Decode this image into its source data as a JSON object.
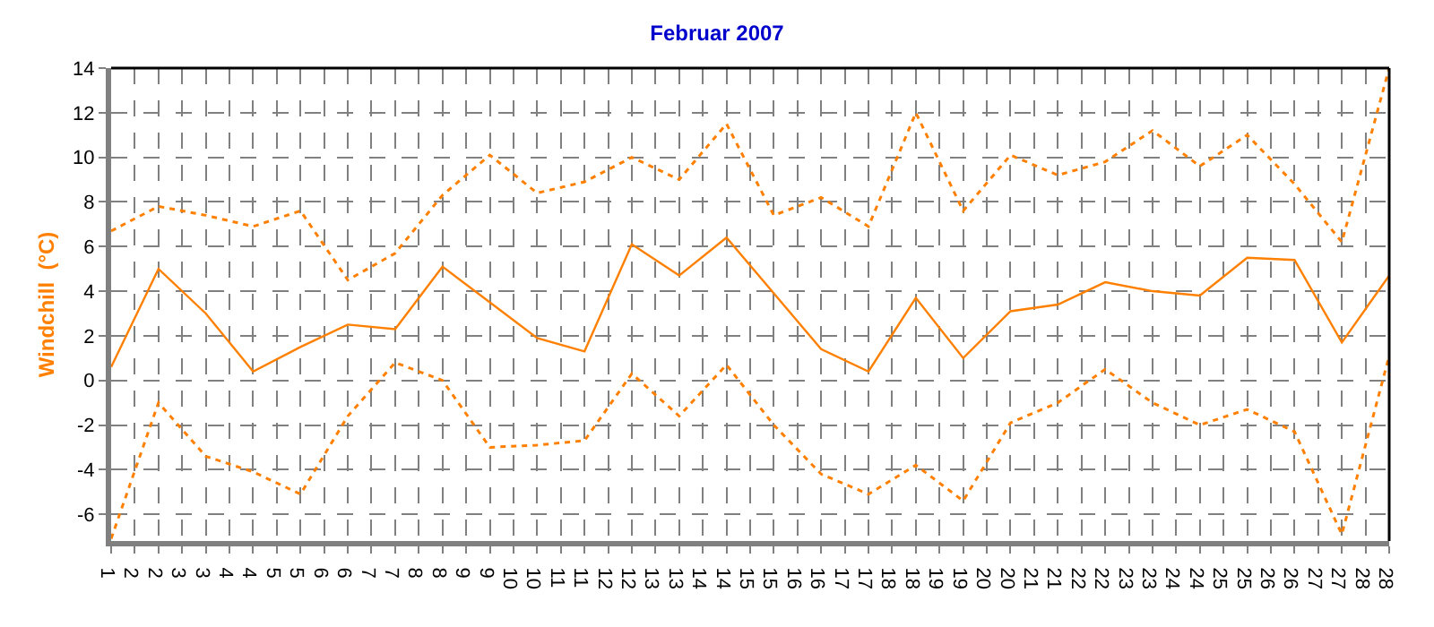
{
  "chart_data": {
    "type": "line",
    "title": "Februar 2007",
    "ylabel": "Windchill  (°C)",
    "x": [
      1,
      2,
      3,
      4,
      5,
      6,
      7,
      8,
      9,
      10,
      11,
      12,
      13,
      14,
      15,
      16,
      17,
      18,
      19,
      20,
      21,
      22,
      23,
      24,
      25,
      26,
      27,
      28
    ],
    "xlim": [
      1,
      28
    ],
    "xticks": [
      1,
      {
        "value": 1.5,
        "label": "2"
      },
      2,
      {
        "value": 2.5,
        "label": "3"
      },
      3,
      {
        "value": 3.5,
        "label": "4"
      },
      4,
      {
        "value": 4.5,
        "label": "5"
      },
      5,
      {
        "value": 5.5,
        "label": "6"
      },
      6,
      {
        "value": 6.5,
        "label": "7"
      },
      7,
      {
        "value": 7.5,
        "label": "8"
      },
      8,
      {
        "value": 8.5,
        "label": "9"
      },
      9,
      {
        "value": 9.5,
        "label": "10"
      },
      10,
      {
        "value": 10.5,
        "label": "11"
      },
      11,
      {
        "value": 11.5,
        "label": "12"
      },
      12,
      {
        "value": 12.5,
        "label": "13"
      },
      13,
      {
        "value": 13.5,
        "label": "14"
      },
      14,
      {
        "value": 14.5,
        "label": "15"
      },
      15,
      {
        "value": 15.5,
        "label": "16"
      },
      16,
      {
        "value": 16.5,
        "label": "17"
      },
      17,
      {
        "value": 17.5,
        "label": "18"
      },
      18,
      {
        "value": 18.5,
        "label": "19"
      },
      19,
      {
        "value": 19.5,
        "label": "20"
      },
      20,
      {
        "value": 20.5,
        "label": "21"
      },
      21,
      {
        "value": 21.5,
        "label": "22"
      },
      22,
      {
        "value": 22.5,
        "label": "23"
      },
      23,
      {
        "value": 23.5,
        "label": "24"
      },
      24,
      {
        "value": 24.5,
        "label": "25"
      },
      25,
      {
        "value": 25.5,
        "label": "26"
      },
      26,
      {
        "value": 26.5,
        "label": "27"
      },
      27,
      {
        "value": 27.5,
        "label": "28"
      },
      28
    ],
    "ylim": [
      -7.2,
      14
    ],
    "yticks": [
      -6,
      -4,
      -2,
      0,
      2,
      4,
      6,
      8,
      10,
      12,
      14
    ],
    "grid": true,
    "marker": "none",
    "series": [
      {
        "color": "#ff8000",
        "line_style": "dotted",
        "values": [
          6.7,
          7.8,
          7.4,
          6.9,
          7.6,
          4.5,
          5.7,
          8.3,
          10.1,
          8.4,
          8.9,
          10,
          9,
          11.5,
          7.4,
          8.2,
          6.9,
          12,
          7.6,
          10.1,
          9.2,
          9.8,
          11.2,
          9.6,
          11,
          8.8,
          6.2,
          14
        ]
      },
      {
        "color": "#ff8000",
        "line_style": "solid",
        "values": [
          0.6,
          5,
          3,
          0.4,
          1.5,
          2.5,
          2.3,
          5.1,
          3.5,
          1.9,
          1.3,
          6.1,
          4.7,
          6.4,
          3.9,
          1.4,
          0.4,
          3.7,
          1,
          3.1,
          3.4,
          4.4,
          4,
          3.8,
          5.5,
          5.4,
          1.7,
          4.7
        ]
      },
      {
        "color": "#ff8000",
        "line_style": "dotted",
        "values": [
          -7.1,
          -1,
          -3.4,
          -4.1,
          -5.1,
          -1.6,
          0.8,
          0,
          -3,
          -2.9,
          -2.7,
          0.3,
          -1.6,
          0.7,
          -2,
          -4.2,
          -5.1,
          -3.8,
          -5.4,
          -1.9,
          -1,
          0.5,
          -1,
          -2,
          -1.3,
          -2.3,
          -6.9,
          1.1
        ]
      }
    ]
  }
}
